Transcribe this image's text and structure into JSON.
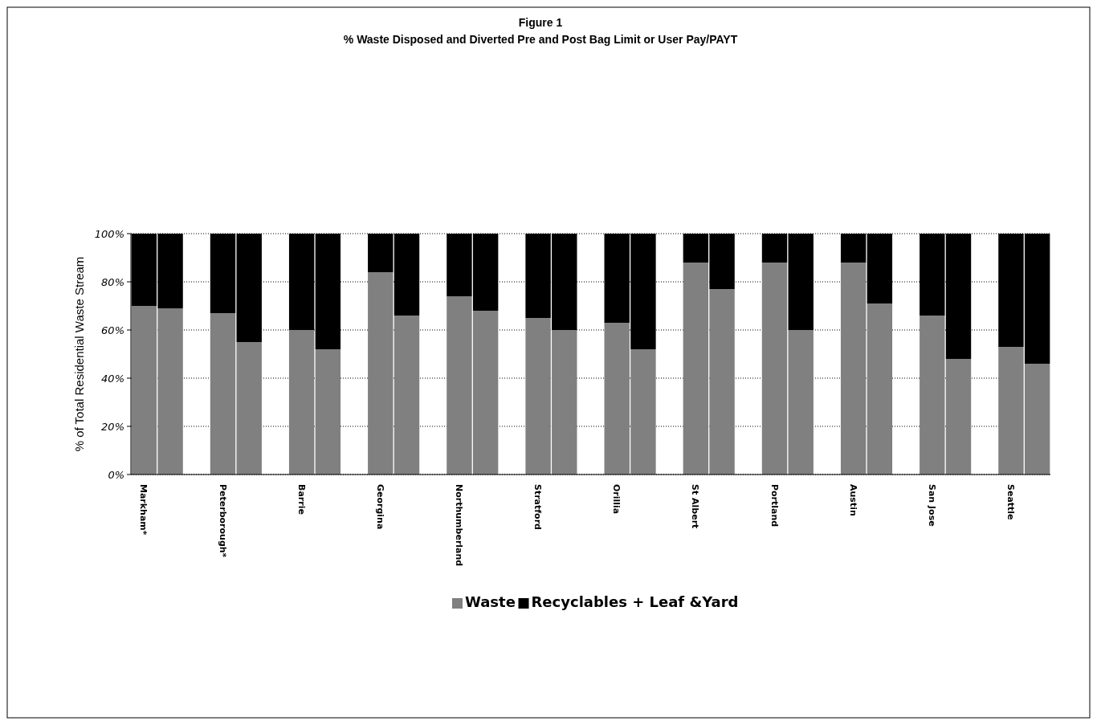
{
  "chart_data": {
    "type": "bar",
    "title": "Figure 1",
    "subtitle": "% Waste Disposed and Diverted Pre and Post  Bag Limit or User Pay/PAYT",
    "ylabel": "% of Total Residential Waste Stream",
    "categories": [
      "Markham*",
      null,
      null,
      "Peterborough*",
      null,
      null,
      "Barrie",
      null,
      null,
      "Georgina",
      null,
      null,
      "Northumberland",
      null,
      null,
      "Stratford",
      null,
      null,
      "Orillia",
      null,
      null,
      "St Albert",
      null,
      null,
      "Portland",
      null,
      null,
      "Austin",
      null,
      null,
      "San Jose",
      null,
      null,
      "Seattle",
      null
    ],
    "stacked": true,
    "series": [
      {
        "name": "Waste",
        "color": "#808080",
        "values": [
          70,
          69,
          null,
          67,
          55,
          null,
          60,
          52,
          null,
          84,
          66,
          null,
          74,
          68,
          null,
          65,
          60,
          null,
          63,
          52,
          null,
          88,
          77,
          null,
          88,
          60,
          null,
          88,
          71,
          null,
          66,
          48,
          null,
          53,
          46
        ]
      },
      {
        "name": "Recyclables + Leaf &Yard",
        "color": "#000000",
        "values": [
          30,
          31,
          null,
          33,
          45,
          null,
          40,
          48,
          null,
          16,
          34,
          null,
          26,
          32,
          null,
          35,
          40,
          null,
          37,
          48,
          null,
          12,
          23,
          null,
          12,
          40,
          null,
          12,
          29,
          null,
          34,
          52,
          null,
          47,
          54
        ]
      }
    ],
    "ylim": [
      0,
      100
    ],
    "yticks": [
      {
        "value": 0,
        "label": "0%"
      },
      {
        "value": 20,
        "label": "20%"
      },
      {
        "value": 40,
        "label": "40%"
      },
      {
        "value": 60,
        "label": "60%"
      },
      {
        "value": 80,
        "label": "80%"
      },
      {
        "value": 100,
        "label": "100%"
      }
    ],
    "grid": "y",
    "legend": "bottom"
  }
}
